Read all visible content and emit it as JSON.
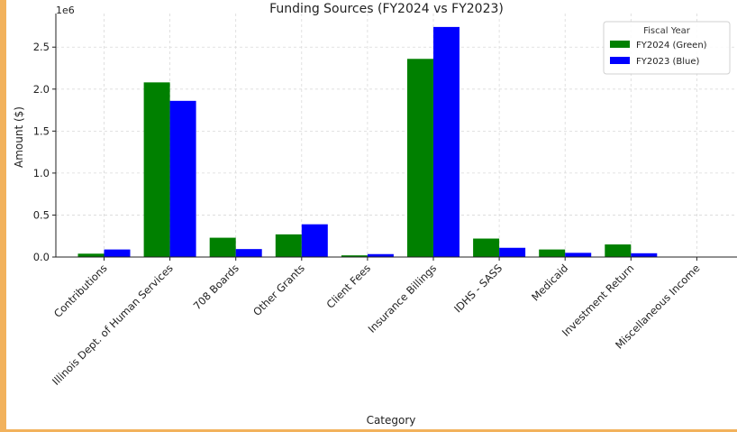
{
  "chart_data": {
    "type": "bar",
    "title": "Funding Sources (FY2024 vs FY2023)",
    "xlabel": "Category",
    "ylabel": "Amount ($)",
    "y_offset_text": "1e6",
    "y_scale_note": "values in dollars; axis tick labels shown in millions (1e6)",
    "ylim": [
      0,
      2900000
    ],
    "yticks": [
      0,
      500000,
      1000000,
      1500000,
      2000000,
      2500000
    ],
    "ytick_labels": [
      "0.0",
      "0.5",
      "1.0",
      "1.5",
      "2.0",
      "2.5"
    ],
    "grid": true,
    "legend": {
      "title": "Fiscal Year",
      "placement": "top-right"
    },
    "categories": [
      "Contributions",
      "Illinois Dept. of Human Services",
      "708 Boards",
      "Other Grants",
      "Client Fees",
      "Insurance Billings",
      "IDHS - SASS",
      "Medicaid",
      "Investment Return",
      "Miscellaneous Income"
    ],
    "series": [
      {
        "name": "FY2024 (Green)",
        "color": "#008000",
        "values": [
          40000,
          2080000,
          230000,
          270000,
          20000,
          2360000,
          220000,
          90000,
          150000,
          5000
        ]
      },
      {
        "name": "FY2023 (Blue)",
        "color": "#0000ff",
        "values": [
          90000,
          1860000,
          95000,
          390000,
          35000,
          2740000,
          110000,
          50000,
          45000,
          0
        ]
      }
    ]
  }
}
